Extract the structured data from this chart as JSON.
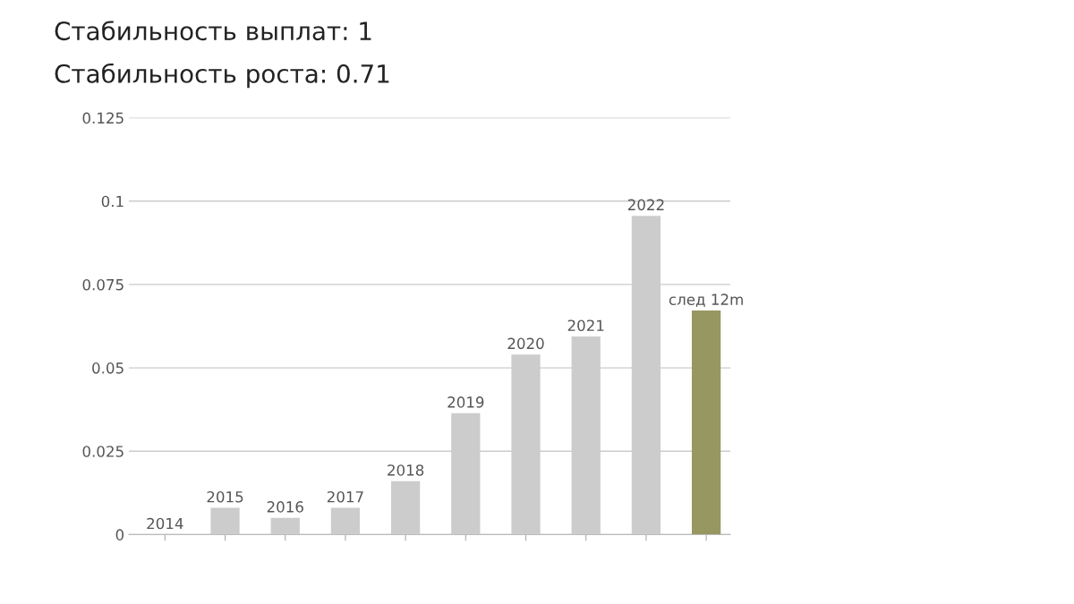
{
  "chart_data": {
    "type": "bar",
    "title": "Стабильность выплат: 1",
    "subtitle": "Стабильность роста: 0.71",
    "categories": [
      "2014",
      "2015",
      "2016",
      "2017",
      "2018",
      "2019",
      "2020",
      "2021",
      "2022",
      "след 12m"
    ],
    "values": [
      0,
      0.008,
      0.005,
      0.008,
      0.016,
      0.0364,
      0.054,
      0.0594,
      0.0956,
      0.0672
    ],
    "colors": [
      "#cccccc",
      "#cccccc",
      "#cccccc",
      "#cccccc",
      "#cccccc",
      "#cccccc",
      "#cccccc",
      "#cccccc",
      "#cccccc",
      "#979762"
    ],
    "ylim": [
      0,
      0.125
    ],
    "yticks": [
      0,
      0.025,
      0.05,
      0.075,
      0.1,
      0.125
    ],
    "grid": "y",
    "tick_labels": "y"
  }
}
